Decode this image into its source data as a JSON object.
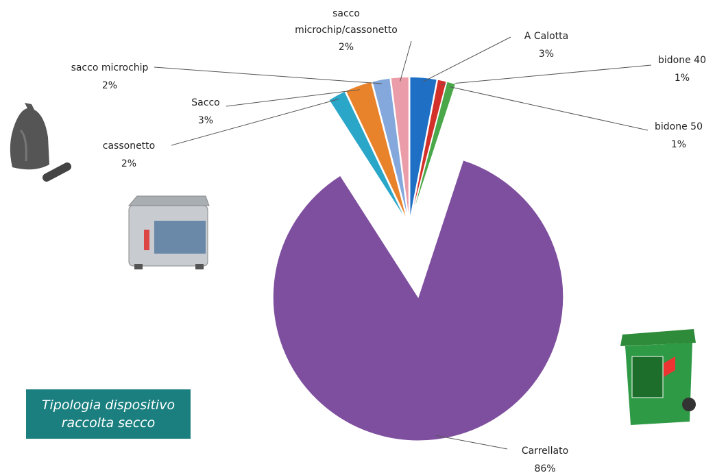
{
  "chart_data": {
    "type": "pie",
    "title": "Tipologia dispositivo raccolta secco",
    "categories": [
      "A Calotta",
      "bidone 40",
      "bidone 50",
      "Carrellato",
      "cassonetto",
      "Sacco",
      "sacco microchip",
      "sacco microchip/cassonetto"
    ],
    "values": [
      3,
      1,
      1,
      86,
      2,
      3,
      2,
      2
    ],
    "value_labels": [
      "3%",
      "1%",
      "1%",
      "86%",
      "2%",
      "3%",
      "2%",
      "2%"
    ],
    "colors": [
      "#1f6fc5",
      "#d3302a",
      "#4aa84a",
      "#7e4f9e",
      "#2aa6c9",
      "#e8832c",
      "#84a8dc",
      "#eb9ca9"
    ]
  }
}
